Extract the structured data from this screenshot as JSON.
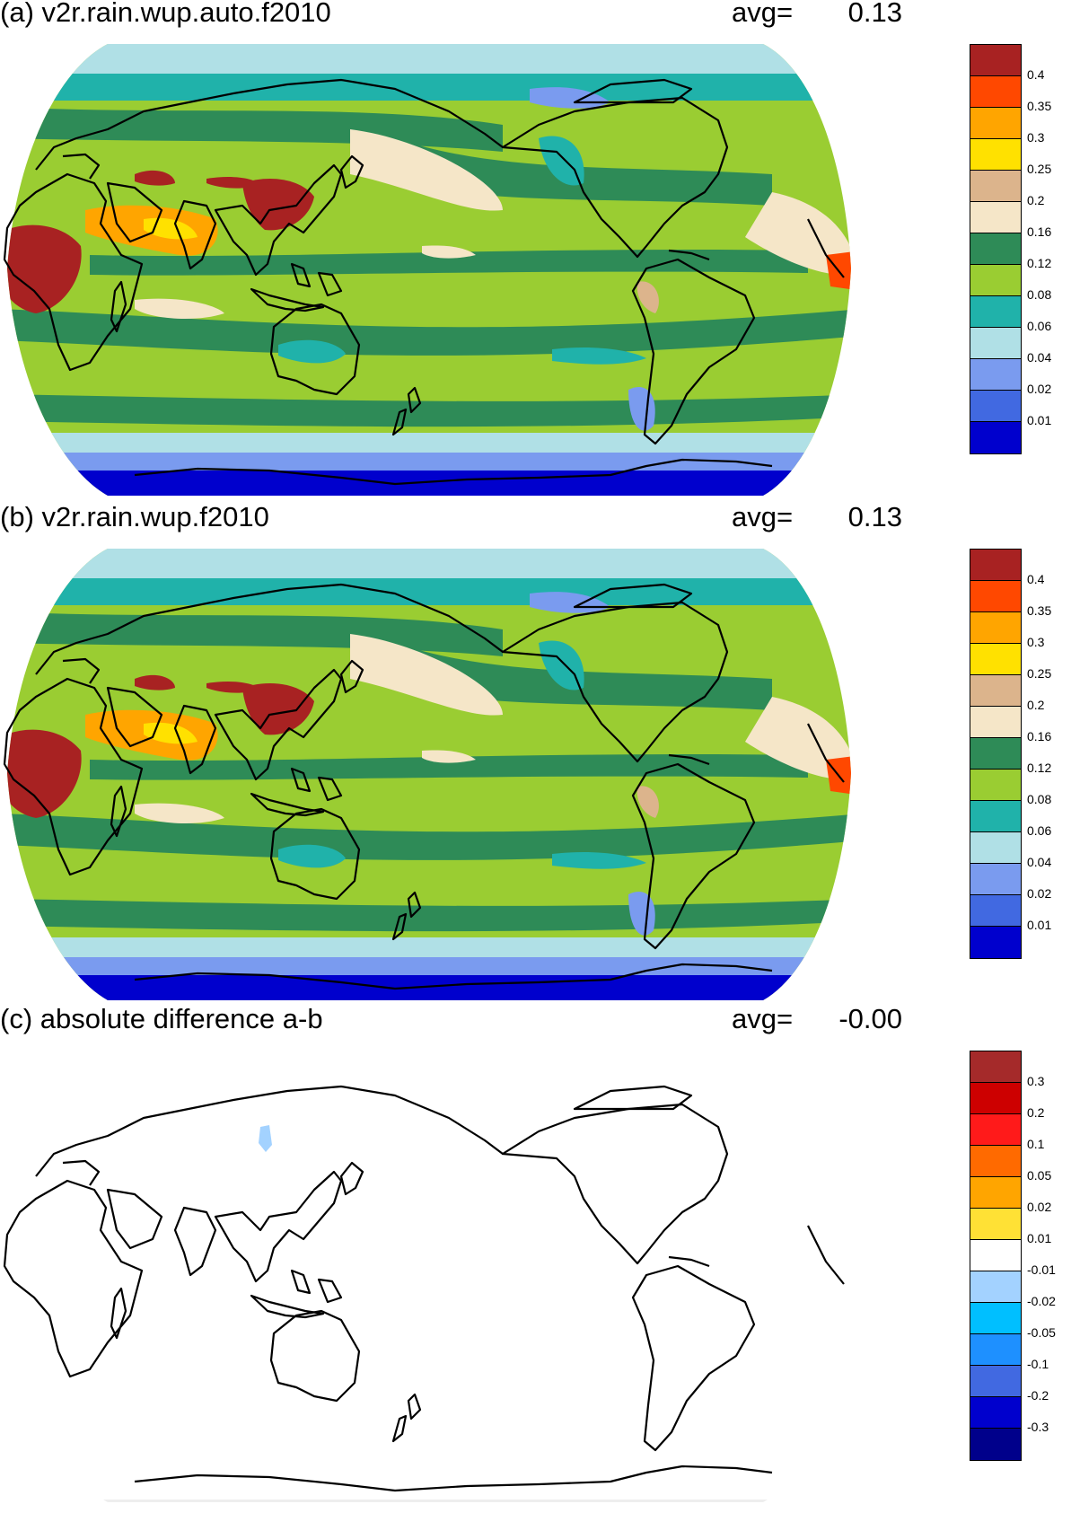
{
  "panels": [
    {
      "id": "a",
      "title": "(a) v2r.rain.wup.auto.f2010",
      "avg_label": "avg=",
      "avg_value": "0.13",
      "colorbar": {
        "colors": [
          "#a82222",
          "#ff4800",
          "#ffa500",
          "#ffe100",
          "#dcb48c",
          "#f5e6c8",
          "#2e8b57",
          "#9acd32",
          "#20b2aa",
          "#b0e0e6",
          "#7a9bef",
          "#4169e1",
          "#0000cd"
        ],
        "labels": [
          "0.4",
          "0.35",
          "0.3",
          "0.25",
          "0.2",
          "0.16",
          "0.12",
          "0.08",
          "0.06",
          "0.04",
          "0.02",
          "0.01"
        ]
      }
    },
    {
      "id": "b",
      "title": "(b) v2r.rain.wup.f2010",
      "avg_label": "avg=",
      "avg_value": "0.13",
      "colorbar": {
        "colors": [
          "#a82222",
          "#ff4800",
          "#ffa500",
          "#ffe100",
          "#dcb48c",
          "#f5e6c8",
          "#2e8b57",
          "#9acd32",
          "#20b2aa",
          "#b0e0e6",
          "#7a9bef",
          "#4169e1",
          "#0000cd"
        ],
        "labels": [
          "0.4",
          "0.35",
          "0.3",
          "0.25",
          "0.2",
          "0.16",
          "0.12",
          "0.08",
          "0.06",
          "0.04",
          "0.02",
          "0.01"
        ]
      }
    },
    {
      "id": "c",
      "title": "(c) absolute difference a-b",
      "avg_label": "avg=",
      "avg_value": "-0.00",
      "colorbar": {
        "colors": [
          "#a52a2a",
          "#cd0000",
          "#ff1a1a",
          "#ff6a00",
          "#ffa500",
          "#ffe135",
          "#ffffff",
          "#a3d2ff",
          "#00bfff",
          "#1e90ff",
          "#4169e1",
          "#0000cd",
          "#00008b"
        ],
        "labels": [
          "0.3",
          "0.2",
          "0.1",
          "0.05",
          "0.02",
          "0.01",
          "-0.01",
          "-0.02",
          "-0.05",
          "-0.1",
          "-0.2",
          "-0.3"
        ]
      }
    }
  ]
}
